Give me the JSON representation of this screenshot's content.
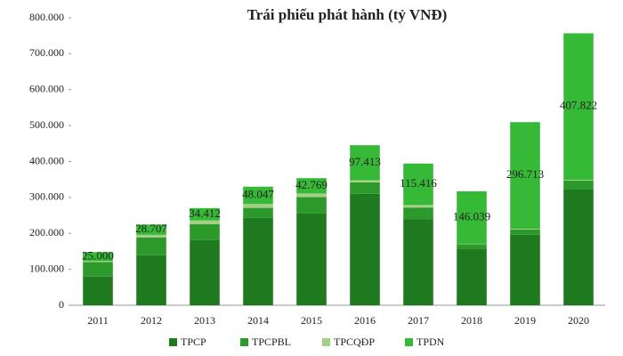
{
  "chart_data": {
    "type": "stacked_bar",
    "title": "Trái phiếu phát hành (tỷ VNĐ)",
    "categories": [
      "2011",
      "2012",
      "2013",
      "2014",
      "2015",
      "2016",
      "2017",
      "2018",
      "2019",
      "2020"
    ],
    "series": [
      {
        "name": "TPCP",
        "color": "#1f7a1f",
        "values": [
          80000,
          139000,
          181000,
          243000,
          256000,
          310000,
          240000,
          156000,
          196000,
          322000
        ]
      },
      {
        "name": "TPCPBL",
        "color": "#2b9a2b",
        "values": [
          40000,
          50000,
          45000,
          28000,
          45000,
          32000,
          32000,
          14000,
          15000,
          25000
        ]
      },
      {
        "name": "TPCQĐP",
        "color": "#a3cf86",
        "values": [
          3000,
          7000,
          10000,
          11000,
          10000,
          6000,
          7000,
          1000,
          2000,
          2000
        ]
      },
      {
        "name": "TPDN",
        "color": "#36b936",
        "values": [
          25000,
          28707,
          34412,
          48047,
          42769,
          97413,
          115416,
          146039,
          296713,
          407822
        ],
        "value_labels": [
          "25.000",
          "28.707",
          "34.412",
          "48.047",
          "42.769",
          "97.413",
          "115.416",
          "146.039",
          "296.713",
          "407.822"
        ]
      }
    ],
    "ylim": [
      0,
      800000
    ],
    "yticks": [
      {
        "value": 0,
        "label": "0"
      },
      {
        "value": 100000,
        "label": "100.000"
      },
      {
        "value": 200000,
        "label": "200.000"
      },
      {
        "value": 300000,
        "label": "300.000"
      },
      {
        "value": 400000,
        "label": "400.000"
      },
      {
        "value": 500000,
        "label": "500.000"
      },
      {
        "value": 600000,
        "label": "600.000"
      },
      {
        "value": 700000,
        "label": "700.000"
      },
      {
        "value": 800000,
        "label": "800.000"
      }
    ],
    "legend": "bottom"
  }
}
